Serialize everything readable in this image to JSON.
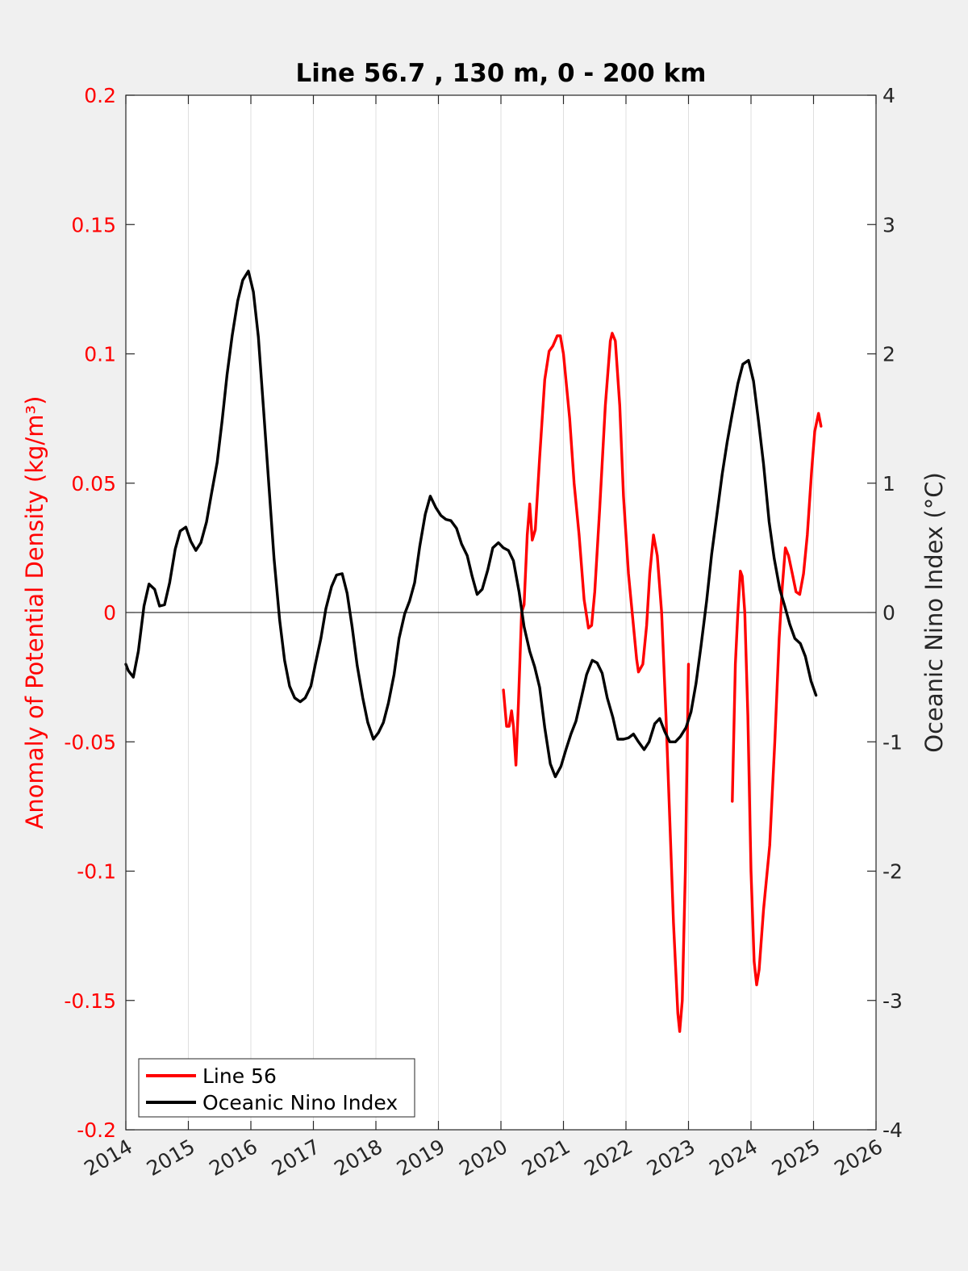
{
  "chart_data": {
    "type": "line",
    "title": "Line 56.7 , 130 m, 0 - 200 km",
    "ylabel_left": "Anomaly of Potential Density (kg/m³)",
    "ylabel_right": "Oceanic Nino Index (°C)",
    "xlabel": "",
    "xlim": [
      2014,
      2026
    ],
    "ylim_left": [
      -0.2,
      0.2
    ],
    "ylim_right": [
      -4,
      4
    ],
    "x_ticks": [
      "2014",
      "2015",
      "2016",
      "2017",
      "2018",
      "2019",
      "2020",
      "2021",
      "2022",
      "2023",
      "2024",
      "2025",
      "2026"
    ],
    "y_ticks_left": [
      "-0.2",
      "-0.15",
      "-0.1",
      "-0.05",
      "0",
      "0.05",
      "0.1",
      "0.15",
      "0.2"
    ],
    "y_ticks_right": [
      "-4",
      "-3",
      "-2",
      "-1",
      "0",
      "1",
      "2",
      "3",
      "4"
    ],
    "grid": "vertical",
    "zero_line": true,
    "legend_position": "bottom-left",
    "colors": {
      "line56": "#ff0000",
      "oni": "#000000",
      "left_axis": "#ff0000",
      "right_axis": "#262626"
    },
    "series": [
      {
        "name": "Line 56",
        "axis": "left",
        "color": "#ff0000",
        "segments": [
          [
            [
              2020.04,
              -0.03
            ],
            [
              2020.09,
              -0.044
            ],
            [
              2020.13,
              -0.044
            ],
            [
              2020.17,
              -0.038
            ],
            [
              2020.2,
              -0.044
            ],
            [
              2020.24,
              -0.059
            ],
            [
              2020.28,
              -0.035
            ],
            [
              2020.33,
              0.0
            ],
            [
              2020.37,
              0.003
            ],
            [
              2020.42,
              0.03
            ],
            [
              2020.46,
              0.042
            ],
            [
              2020.5,
              0.028
            ],
            [
              2020.55,
              0.032
            ],
            [
              2020.62,
              0.06
            ],
            [
              2020.7,
              0.09
            ],
            [
              2020.77,
              0.101
            ],
            [
              2020.83,
              0.103
            ],
            [
              2020.9,
              0.107
            ],
            [
              2020.95,
              0.107
            ],
            [
              2021.0,
              0.1
            ],
            [
              2021.1,
              0.075
            ],
            [
              2021.17,
              0.05
            ],
            [
              2021.25,
              0.03
            ],
            [
              2021.33,
              0.005
            ],
            [
              2021.4,
              -0.006
            ],
            [
              2021.45,
              -0.005
            ],
            [
              2021.5,
              0.008
            ],
            [
              2021.58,
              0.04
            ],
            [
              2021.67,
              0.08
            ],
            [
              2021.75,
              0.105
            ],
            [
              2021.78,
              0.108
            ],
            [
              2021.83,
              0.105
            ],
            [
              2021.9,
              0.08
            ],
            [
              2021.96,
              0.045
            ],
            [
              2022.04,
              0.015
            ],
            [
              2022.1,
              0.0
            ],
            [
              2022.17,
              -0.018
            ],
            [
              2022.2,
              -0.023
            ],
            [
              2022.27,
              -0.02
            ],
            [
              2022.33,
              -0.005
            ],
            [
              2022.38,
              0.015
            ],
            [
              2022.44,
              0.03
            ],
            [
              2022.5,
              0.022
            ],
            [
              2022.57,
              0.0
            ],
            [
              2022.64,
              -0.04
            ],
            [
              2022.7,
              -0.08
            ],
            [
              2022.76,
              -0.12
            ],
            [
              2022.83,
              -0.155
            ],
            [
              2022.86,
              -0.162
            ],
            [
              2022.9,
              -0.15
            ],
            [
              2022.95,
              -0.1
            ],
            [
              2023.0,
              -0.02
            ]
          ],
          [
            [
              2023.7,
              -0.073
            ],
            [
              2023.75,
              -0.02
            ],
            [
              2023.79,
              0.0
            ],
            [
              2023.83,
              0.016
            ],
            [
              2023.86,
              0.014
            ],
            [
              2023.9,
              0.0
            ],
            [
              2023.95,
              -0.04
            ],
            [
              2024.0,
              -0.1
            ],
            [
              2024.05,
              -0.135
            ],
            [
              2024.09,
              -0.144
            ],
            [
              2024.13,
              -0.138
            ],
            [
              2024.2,
              -0.115
            ],
            [
              2024.3,
              -0.09
            ],
            [
              2024.38,
              -0.05
            ],
            [
              2024.45,
              -0.01
            ],
            [
              2024.5,
              0.01
            ],
            [
              2024.55,
              0.025
            ],
            [
              2024.6,
              0.022
            ],
            [
              2024.66,
              0.015
            ],
            [
              2024.72,
              0.008
            ],
            [
              2024.78,
              0.007
            ],
            [
              2024.84,
              0.015
            ],
            [
              2024.9,
              0.03
            ],
            [
              2024.97,
              0.055
            ],
            [
              2025.02,
              0.07
            ],
            [
              2025.08,
              0.077
            ],
            [
              2025.12,
              0.072
            ]
          ]
        ]
      },
      {
        "name": "Oceanic Nino Index",
        "axis": "right",
        "color": "#000000",
        "points": [
          [
            2014.0,
            -0.4
          ],
          [
            2014.04,
            -0.45
          ],
          [
            2014.12,
            -0.5
          ],
          [
            2014.2,
            -0.3
          ],
          [
            2014.29,
            0.05
          ],
          [
            2014.37,
            0.22
          ],
          [
            2014.46,
            0.18
          ],
          [
            2014.54,
            0.05
          ],
          [
            2014.62,
            0.06
          ],
          [
            2014.7,
            0.23
          ],
          [
            2014.79,
            0.49
          ],
          [
            2014.87,
            0.63
          ],
          [
            2014.96,
            0.66
          ],
          [
            2015.04,
            0.55
          ],
          [
            2015.12,
            0.48
          ],
          [
            2015.2,
            0.54
          ],
          [
            2015.29,
            0.7
          ],
          [
            2015.37,
            0.92
          ],
          [
            2015.46,
            1.16
          ],
          [
            2015.54,
            1.48
          ],
          [
            2015.62,
            1.84
          ],
          [
            2015.7,
            2.14
          ],
          [
            2015.79,
            2.41
          ],
          [
            2015.87,
            2.57
          ],
          [
            2015.96,
            2.64
          ],
          [
            2016.04,
            2.48
          ],
          [
            2016.12,
            2.13
          ],
          [
            2016.2,
            1.59
          ],
          [
            2016.29,
            0.97
          ],
          [
            2016.37,
            0.42
          ],
          [
            2016.46,
            -0.06
          ],
          [
            2016.54,
            -0.37
          ],
          [
            2016.62,
            -0.57
          ],
          [
            2016.7,
            -0.66
          ],
          [
            2016.79,
            -0.69
          ],
          [
            2016.87,
            -0.66
          ],
          [
            2016.96,
            -0.57
          ],
          [
            2017.04,
            -0.38
          ],
          [
            2017.12,
            -0.2
          ],
          [
            2017.2,
            0.03
          ],
          [
            2017.29,
            0.2
          ],
          [
            2017.37,
            0.29
          ],
          [
            2017.46,
            0.3
          ],
          [
            2017.54,
            0.15
          ],
          [
            2017.62,
            -0.11
          ],
          [
            2017.7,
            -0.41
          ],
          [
            2017.79,
            -0.66
          ],
          [
            2017.87,
            -0.85
          ],
          [
            2017.96,
            -0.98
          ],
          [
            2018.04,
            -0.93
          ],
          [
            2018.12,
            -0.85
          ],
          [
            2018.2,
            -0.7
          ],
          [
            2018.29,
            -0.48
          ],
          [
            2018.37,
            -0.2
          ],
          [
            2018.46,
            -0.01
          ],
          [
            2018.54,
            0.09
          ],
          [
            2018.62,
            0.23
          ],
          [
            2018.7,
            0.51
          ],
          [
            2018.79,
            0.76
          ],
          [
            2018.87,
            0.9
          ],
          [
            2018.96,
            0.81
          ],
          [
            2019.04,
            0.75
          ],
          [
            2019.12,
            0.72
          ],
          [
            2019.2,
            0.71
          ],
          [
            2019.29,
            0.65
          ],
          [
            2019.37,
            0.53
          ],
          [
            2019.46,
            0.44
          ],
          [
            2019.54,
            0.28
          ],
          [
            2019.62,
            0.14
          ],
          [
            2019.7,
            0.18
          ],
          [
            2019.79,
            0.33
          ],
          [
            2019.87,
            0.5
          ],
          [
            2019.96,
            0.54
          ],
          [
            2020.04,
            0.5
          ],
          [
            2020.12,
            0.48
          ],
          [
            2020.2,
            0.4
          ],
          [
            2020.29,
            0.16
          ],
          [
            2020.37,
            -0.11
          ],
          [
            2020.46,
            -0.3
          ],
          [
            2020.54,
            -0.42
          ],
          [
            2020.62,
            -0.58
          ],
          [
            2020.7,
            -0.89
          ],
          [
            2020.79,
            -1.17
          ],
          [
            2020.87,
            -1.27
          ],
          [
            2020.96,
            -1.19
          ],
          [
            2021.04,
            -1.06
          ],
          [
            2021.12,
            -0.94
          ],
          [
            2021.2,
            -0.84
          ],
          [
            2021.29,
            -0.65
          ],
          [
            2021.37,
            -0.48
          ],
          [
            2021.46,
            -0.37
          ],
          [
            2021.54,
            -0.39
          ],
          [
            2021.62,
            -0.47
          ],
          [
            2021.7,
            -0.66
          ],
          [
            2021.79,
            -0.81
          ],
          [
            2021.87,
            -0.98
          ],
          [
            2021.96,
            -0.98
          ],
          [
            2022.04,
            -0.97
          ],
          [
            2022.12,
            -0.94
          ],
          [
            2022.2,
            -1.0
          ],
          [
            2022.29,
            -1.06
          ],
          [
            2022.37,
            -1.0
          ],
          [
            2022.46,
            -0.86
          ],
          [
            2022.54,
            -0.82
          ],
          [
            2022.62,
            -0.92
          ],
          [
            2022.7,
            -1.0
          ],
          [
            2022.79,
            -1.0
          ],
          [
            2022.87,
            -0.96
          ],
          [
            2022.96,
            -0.89
          ],
          [
            2023.04,
            -0.77
          ],
          [
            2023.12,
            -0.55
          ],
          [
            2023.2,
            -0.26
          ],
          [
            2023.29,
            0.09
          ],
          [
            2023.37,
            0.45
          ],
          [
            2023.46,
            0.78
          ],
          [
            2023.54,
            1.07
          ],
          [
            2023.62,
            1.32
          ],
          [
            2023.7,
            1.54
          ],
          [
            2023.79,
            1.77
          ],
          [
            2023.87,
            1.92
          ],
          [
            2023.96,
            1.95
          ],
          [
            2024.04,
            1.79
          ],
          [
            2024.12,
            1.48
          ],
          [
            2024.2,
            1.15
          ],
          [
            2024.29,
            0.7
          ],
          [
            2024.37,
            0.42
          ],
          [
            2024.46,
            0.18
          ],
          [
            2024.54,
            0.05
          ],
          [
            2024.62,
            -0.09
          ],
          [
            2024.7,
            -0.2
          ],
          [
            2024.79,
            -0.24
          ],
          [
            2024.87,
            -0.34
          ],
          [
            2024.96,
            -0.53
          ],
          [
            2025.04,
            -0.64
          ]
        ]
      }
    ]
  },
  "legend": {
    "items": [
      {
        "label": "Line 56",
        "color": "#ff0000"
      },
      {
        "label": "Oceanic Nino Index",
        "color": "#000000"
      }
    ]
  }
}
